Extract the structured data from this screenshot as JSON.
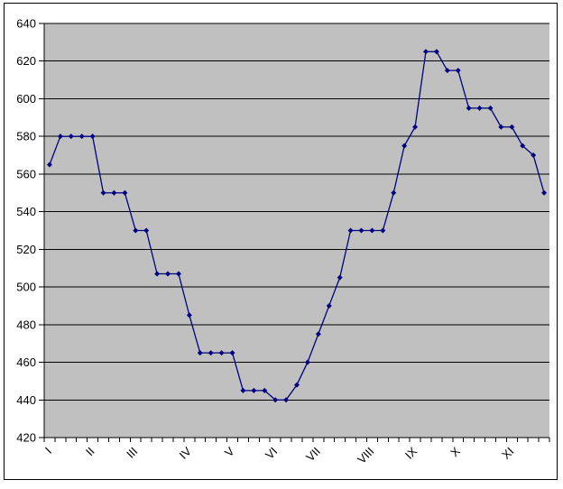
{
  "window": {
    "description": "embedded spreadsheet line chart"
  },
  "chart_data": {
    "type": "line",
    "title": "",
    "xlabel": "",
    "ylabel": "",
    "x_tick_labels": [
      "I",
      "II",
      "III",
      "IV",
      "V",
      "VI",
      "VII",
      "VIII",
      "IX",
      "X",
      "XI"
    ],
    "x_tick_label_category_index": [
      0,
      4,
      8,
      13,
      17,
      21,
      25,
      30,
      34,
      38,
      43
    ],
    "categories_count": 47,
    "values": [
      565,
      580,
      580,
      580,
      580,
      550,
      550,
      550,
      530,
      530,
      507,
      507,
      507,
      485,
      465,
      465,
      465,
      465,
      445,
      445,
      445,
      440,
      440,
      448,
      460,
      475,
      490,
      505,
      530,
      530,
      530,
      530,
      550,
      575,
      585,
      625,
      625,
      615,
      615,
      595,
      595,
      595,
      585,
      585,
      575,
      570,
      550
    ],
    "y_ticks": [
      640,
      620,
      600,
      580,
      560,
      540,
      520,
      500,
      480,
      460,
      440,
      420
    ],
    "ylim": [
      420,
      640
    ],
    "grid": true,
    "legend": "none",
    "marker": "diamond",
    "colors": {
      "series_line": "#000080",
      "series_marker": "#000080",
      "plot_background": "#c0c0c0",
      "gridline": "#000000",
      "axis_line": "#000000",
      "chart_background": "#ffffff",
      "chart_border": "#000000",
      "tick_label_text": "#000000"
    }
  }
}
